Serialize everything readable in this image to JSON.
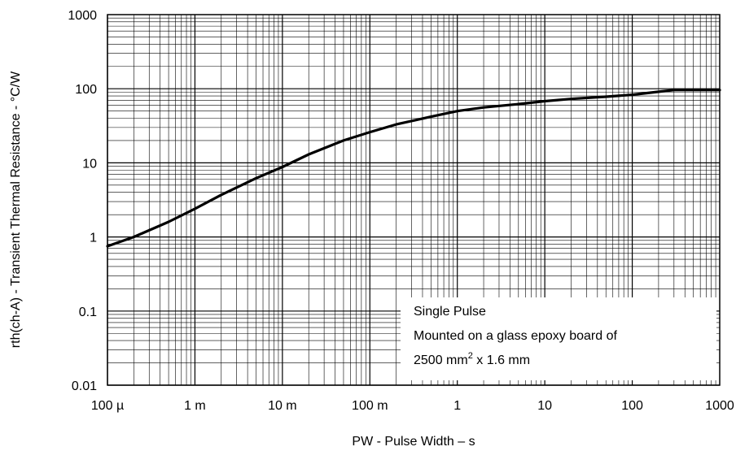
{
  "chart_data": {
    "type": "line",
    "xlabel": "PW - Pulse Width – s",
    "ylabel": "rth(ch-A) - Transient Thermal Resistance - °C/W",
    "x_scale": "log",
    "y_scale": "log",
    "xlim": [
      0.0001,
      1000
    ],
    "ylim": [
      0.01,
      1000
    ],
    "grid": true,
    "x_ticks": [
      {
        "value": 0.0001,
        "label": "100 µ"
      },
      {
        "value": 0.001,
        "label": "1 m"
      },
      {
        "value": 0.01,
        "label": "10 m"
      },
      {
        "value": 0.1,
        "label": "100 m"
      },
      {
        "value": 1,
        "label": "1"
      },
      {
        "value": 10,
        "label": "10"
      },
      {
        "value": 100,
        "label": "100"
      },
      {
        "value": 1000,
        "label": "1000"
      }
    ],
    "y_ticks": [
      {
        "value": 0.01,
        "label": "0.01"
      },
      {
        "value": 0.1,
        "label": "0.1"
      },
      {
        "value": 1,
        "label": "1"
      },
      {
        "value": 10,
        "label": "10"
      },
      {
        "value": 100,
        "label": "100"
      },
      {
        "value": 1000,
        "label": "1000"
      }
    ],
    "series": [
      {
        "x": [
          0.0001,
          0.0002,
          0.0005,
          0.001,
          0.002,
          0.005,
          0.01,
          0.02,
          0.05,
          0.1,
          0.2,
          0.5,
          1,
          2,
          5,
          10,
          20,
          50,
          100,
          200,
          300,
          500,
          1000
        ],
        "y": [
          0.75,
          1.0,
          1.6,
          2.4,
          3.7,
          6.2,
          8.8,
          13,
          20,
          26,
          33,
          42,
          50,
          56,
          62,
          68,
          73,
          78,
          83,
          91,
          96,
          96,
          96
        ]
      }
    ],
    "annotation": {
      "line1": "Single Pulse",
      "line2": "Mounted on a glass epoxy board of",
      "line3_prefix": "2500 mm",
      "line3_sup": "2",
      "line3_suffix": " x 1.6 mm"
    }
  }
}
